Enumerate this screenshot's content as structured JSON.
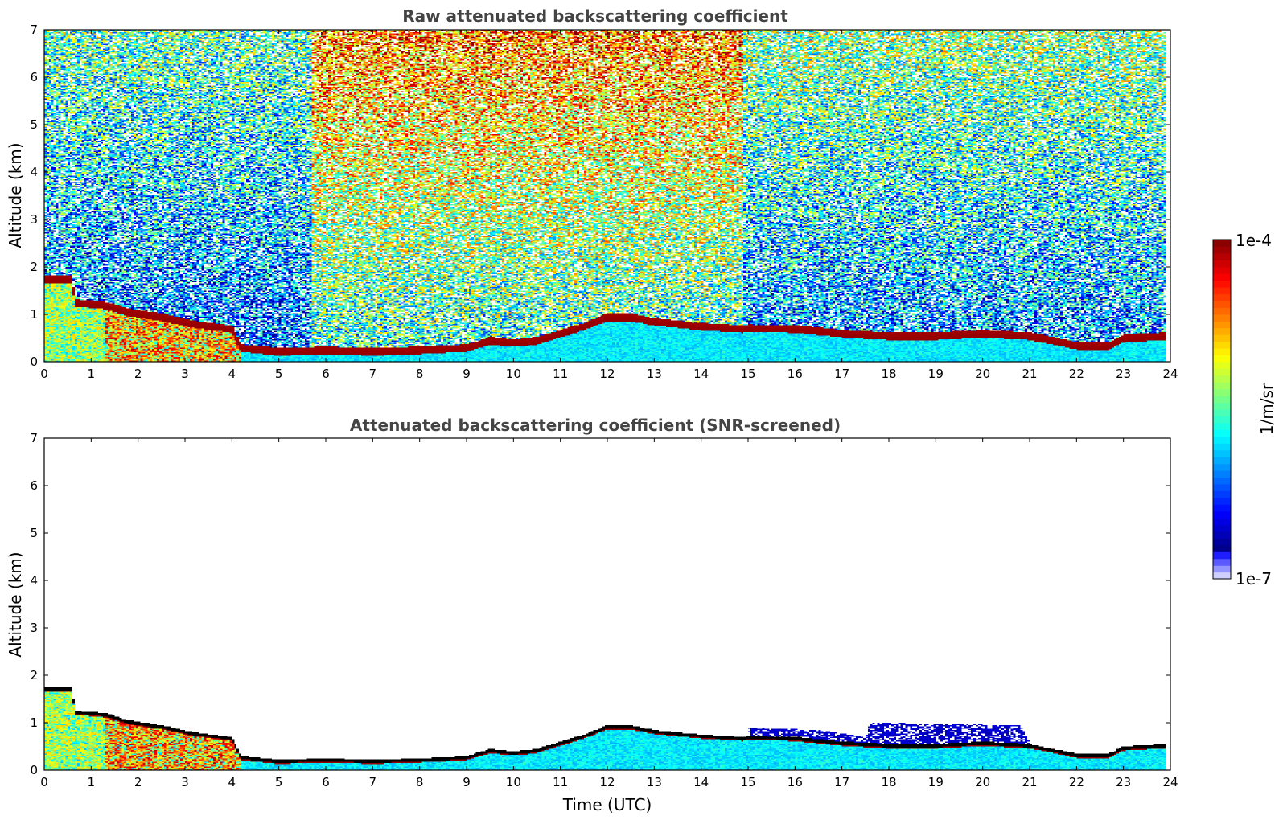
{
  "chart_data": [
    {
      "type": "heatmap",
      "title": "Raw attenuated backscattering coefficient",
      "xlabel": "",
      "ylabel": "Altitude (km)",
      "xlim": [
        0,
        24
      ],
      "ylim": [
        0,
        7
      ],
      "xticks": [
        0,
        1,
        2,
        3,
        4,
        5,
        6,
        7,
        8,
        9,
        10,
        11,
        12,
        13,
        14,
        15,
        16,
        17,
        18,
        19,
        20,
        21,
        22,
        23,
        24
      ],
      "yticks": [
        0,
        1,
        2,
        3,
        4,
        5,
        6,
        7
      ],
      "data_end_time": 23.9,
      "layer_top_km": [
        [
          0.0,
          1.75
        ],
        [
          0.6,
          1.75
        ],
        [
          0.65,
          1.25
        ],
        [
          1.3,
          1.2
        ],
        [
          1.8,
          1.05
        ],
        [
          2.5,
          0.95
        ],
        [
          3.2,
          0.8
        ],
        [
          3.6,
          0.75
        ],
        [
          4.0,
          0.7
        ],
        [
          4.2,
          0.3
        ],
        [
          5.0,
          0.22
        ],
        [
          6.0,
          0.25
        ],
        [
          7.0,
          0.22
        ],
        [
          8.0,
          0.25
        ],
        [
          9.0,
          0.3
        ],
        [
          9.5,
          0.45
        ],
        [
          10.0,
          0.4
        ],
        [
          10.5,
          0.45
        ],
        [
          11.0,
          0.6
        ],
        [
          11.5,
          0.75
        ],
        [
          12.0,
          0.95
        ],
        [
          12.5,
          0.95
        ],
        [
          13.0,
          0.85
        ],
        [
          14.0,
          0.75
        ],
        [
          14.9,
          0.7
        ],
        [
          15.0,
          0.72
        ],
        [
          16.0,
          0.7
        ],
        [
          17.0,
          0.6
        ],
        [
          18.0,
          0.55
        ],
        [
          19.0,
          0.55
        ],
        [
          20.0,
          0.6
        ],
        [
          21.0,
          0.55
        ],
        [
          21.5,
          0.45
        ],
        [
          22.0,
          0.35
        ],
        [
          22.7,
          0.35
        ],
        [
          23.0,
          0.5
        ],
        [
          23.9,
          0.55
        ]
      ],
      "noise_zones": [
        {
          "x0": 0,
          "x1": 5.7,
          "level": 0.5
        },
        {
          "x0": 5.7,
          "x1": 14.9,
          "level": 0.78
        },
        {
          "x0": 14.9,
          "x1": 24,
          "level": 0.55
        }
      ],
      "colorbar": {
        "label": "1/m/sr",
        "min": "1e-7",
        "max": "1e-4",
        "scale": "log",
        "colormap": "jet"
      }
    },
    {
      "type": "heatmap",
      "title": "Attenuated backscattering coefficient (SNR-screened)",
      "xlabel": "Time (UTC)",
      "ylabel": "Altitude (km)",
      "xlim": [
        0,
        24
      ],
      "ylim": [
        0,
        7
      ],
      "xticks": [
        0,
        1,
        2,
        3,
        4,
        5,
        6,
        7,
        8,
        9,
        10,
        11,
        12,
        13,
        14,
        15,
        16,
        17,
        18,
        19,
        20,
        21,
        22,
        23,
        24
      ],
      "yticks": [
        0,
        1,
        2,
        3,
        4,
        5,
        6,
        7
      ],
      "data_end_time": 23.9,
      "screened_top_km": [
        [
          15.0,
          0.9
        ],
        [
          16.5,
          0.85
        ],
        [
          17.5,
          0.7
        ],
        [
          17.6,
          1.0
        ],
        [
          20.8,
          0.95
        ],
        [
          21.0,
          0.6
        ]
      ],
      "colorbar": {
        "label": "1/m/sr",
        "min": "1e-7",
        "max": "1e-4",
        "scale": "log",
        "colormap": "jet"
      }
    }
  ]
}
